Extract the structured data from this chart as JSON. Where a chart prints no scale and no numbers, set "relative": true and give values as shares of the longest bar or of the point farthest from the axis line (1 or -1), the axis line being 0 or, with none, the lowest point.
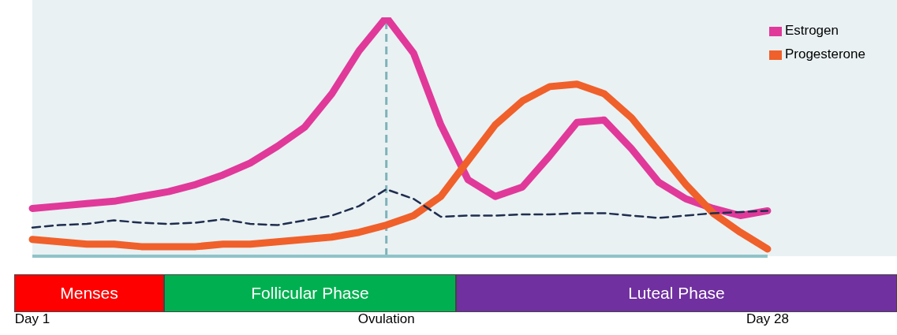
{
  "chart_data": {
    "type": "line",
    "relative": true,
    "categories": [
      "Day 1",
      null,
      null,
      null,
      null,
      null,
      null,
      null,
      null,
      null,
      null,
      null,
      null,
      "Ovulation",
      null,
      null,
      null,
      null,
      null,
      null,
      null,
      null,
      null,
      null,
      null,
      null,
      null,
      "Day 28"
    ],
    "legend": "top right",
    "series": [
      {
        "name": "Estrogen",
        "color": "#e0399a",
        "values": [
          0.2,
          0.21,
          0.22,
          0.23,
          0.25,
          0.27,
          0.3,
          0.34,
          0.39,
          0.46,
          0.54,
          0.68,
          0.86,
          1,
          0.85,
          0.55,
          0.32,
          0.25,
          0.29,
          0.42,
          0.56,
          0.57,
          0.45,
          0.31,
          0.24,
          0.2,
          0.17,
          0.19
        ]
      },
      {
        "name": "Progesterone",
        "color": "#f0602a",
        "values": [
          0.07,
          0.06,
          0.05,
          0.05,
          0.04,
          0.04,
          0.04,
          0.05,
          0.05,
          0.06,
          0.07,
          0.08,
          0.1,
          0.13,
          0.17,
          0.25,
          0.4,
          0.55,
          0.65,
          0.71,
          0.72,
          0.68,
          0.58,
          0.44,
          0.3,
          0.18,
          0.1,
          0.03
        ]
      },
      {
        "color": "#1f2d4e",
        "line_style": "dashed",
        "values": [
          0.12,
          0.13,
          0.135,
          0.15,
          0.14,
          0.135,
          0.14,
          0.155,
          0.135,
          0.13,
          0.15,
          0.17,
          0.21,
          0.28,
          0.24,
          0.165,
          0.17,
          0.17,
          0.175,
          0.175,
          0.18,
          0.18,
          0.17,
          0.16,
          0.17,
          0.18,
          0.185,
          0.19
        ]
      }
    ],
    "ref_lines": [
      {
        "axis": "x",
        "value": "Ovulation",
        "color": "#7fb3b8",
        "line_style": "dashed"
      }
    ],
    "annotations": [
      "Menses",
      "Follicular Phase",
      "Luteal Phase"
    ]
  }
}
